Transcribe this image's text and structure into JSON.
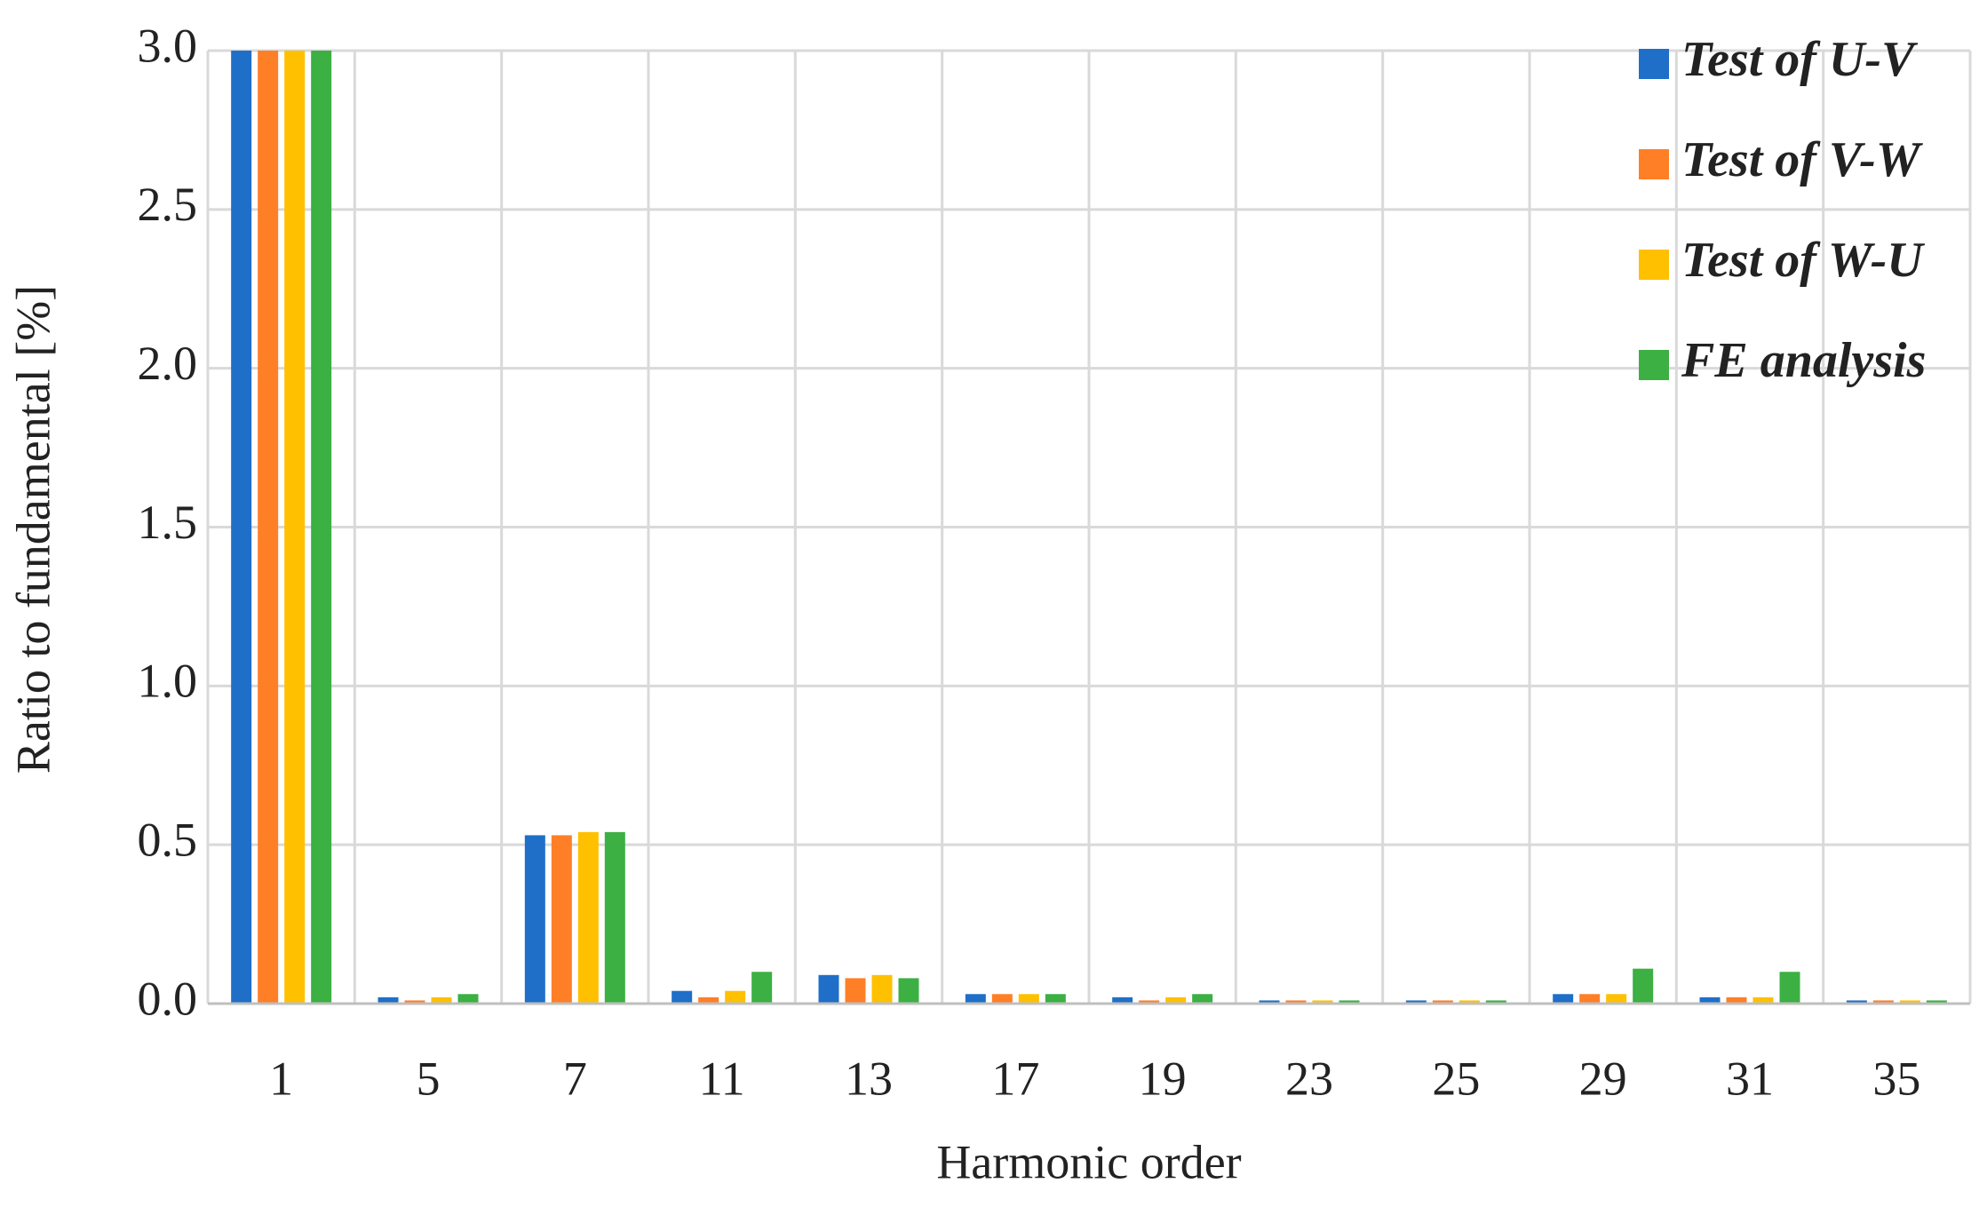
{
  "chart_data": {
    "type": "bar",
    "x_label": "Harmonic order",
    "y_label": "Ratio to fundamental [%]",
    "categories": [
      "1",
      "5",
      "7",
      "11",
      "13",
      "17",
      "19",
      "23",
      "25",
      "29",
      "31",
      "35"
    ],
    "series": [
      {
        "name": "Test of U-V",
        "color": "#1f6fc8",
        "values": [
          3.0,
          0.02,
          0.53,
          0.04,
          0.09,
          0.03,
          0.02,
          0.01,
          0.01,
          0.03,
          0.02,
          0.01
        ]
      },
      {
        "name": "Test of V-W",
        "color": "#ff7f27",
        "values": [
          3.0,
          0.01,
          0.53,
          0.02,
          0.08,
          0.03,
          0.01,
          0.01,
          0.01,
          0.03,
          0.02,
          0.01
        ]
      },
      {
        "name": "Test of W-U",
        "color": "#ffc000",
        "values": [
          3.0,
          0.02,
          0.54,
          0.04,
          0.09,
          0.03,
          0.02,
          0.01,
          0.01,
          0.03,
          0.02,
          0.01
        ]
      },
      {
        "name": "FE analysis",
        "color": "#3cb043",
        "values": [
          3.0,
          0.03,
          0.54,
          0.1,
          0.08,
          0.03,
          0.03,
          0.01,
          0.01,
          0.11,
          0.1,
          0.01
        ]
      }
    ],
    "ylim": [
      0,
      3
    ],
    "yticks": [
      {
        "value": 0,
        "label": "0.0"
      },
      {
        "value": 0.5,
        "label": "0.5"
      },
      {
        "value": 1,
        "label": "1.0"
      },
      {
        "value": 1.5,
        "label": "1.5"
      },
      {
        "value": 2,
        "label": "2.0"
      },
      {
        "value": 2.5,
        "label": "2.5"
      },
      {
        "value": 3,
        "label": "3.0"
      }
    ],
    "grid": true,
    "legend_position": "top-right"
  }
}
